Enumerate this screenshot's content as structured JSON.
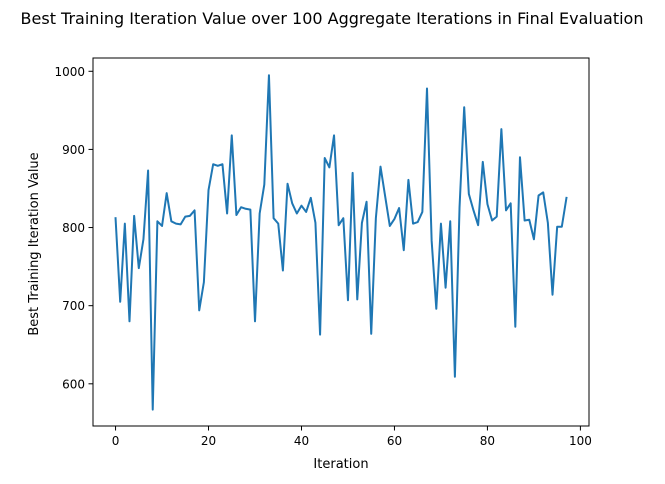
{
  "chart_data": {
    "type": "line",
    "title": "Best Training Iteration Value over 100 Aggregate Iterations in Final Evaluation",
    "xlabel": "Iteration",
    "ylabel": "Best Training Iteration Value",
    "xlim": [
      -4.85,
      101.85
    ],
    "ylim": [
      546,
      1017
    ],
    "xticks": [
      0,
      20,
      40,
      60,
      80,
      100
    ],
    "yticks": [
      600,
      700,
      800,
      900,
      1000
    ],
    "grid": false,
    "legend": "none",
    "line_color": "#1f77b4",
    "series": [
      {
        "x": [
          0,
          1,
          2,
          3,
          4,
          5,
          6,
          7,
          8,
          9,
          10,
          11,
          12,
          13,
          14,
          15,
          16,
          17,
          18,
          19,
          20,
          21,
          22,
          23,
          24,
          25,
          26,
          27,
          28,
          29,
          30,
          31,
          32,
          33,
          34,
          35,
          36,
          37,
          38,
          39,
          40,
          41,
          42,
          43,
          44,
          45,
          46,
          47,
          48,
          49,
          50,
          51,
          52,
          53,
          54,
          55,
          56,
          57,
          58,
          59,
          60,
          61,
          62,
          63,
          64,
          65,
          66,
          67,
          68,
          69,
          70,
          71,
          72,
          73,
          74,
          75,
          76,
          77,
          78,
          79,
          80,
          81,
          82,
          83,
          84,
          85,
          86,
          87,
          88,
          89,
          90,
          91,
          92,
          93,
          94,
          95,
          96,
          97
        ],
        "values": [
          812,
          705,
          805,
          680,
          815,
          748,
          785,
          873,
          567,
          808,
          802,
          844,
          808,
          805,
          804,
          814,
          815,
          822,
          694,
          730,
          848,
          881,
          879,
          881,
          818,
          918,
          816,
          826,
          824,
          823,
          680,
          818,
          855,
          995,
          812,
          805,
          745,
          856,
          831,
          818,
          828,
          820,
          838,
          806,
          663,
          889,
          877,
          918,
          803,
          812,
          707,
          870,
          708,
          806,
          833,
          664,
          812,
          878,
          840,
          802,
          811,
          825,
          771,
          861,
          805,
          807,
          820,
          978,
          783,
          696,
          805,
          723,
          808,
          609,
          826,
          954,
          843,
          822,
          803,
          884,
          830,
          809,
          814,
          926,
          822,
          831,
          673,
          890,
          809,
          810,
          785,
          841,
          845,
          806,
          714,
          801,
          801,
          838
        ]
      }
    ]
  }
}
